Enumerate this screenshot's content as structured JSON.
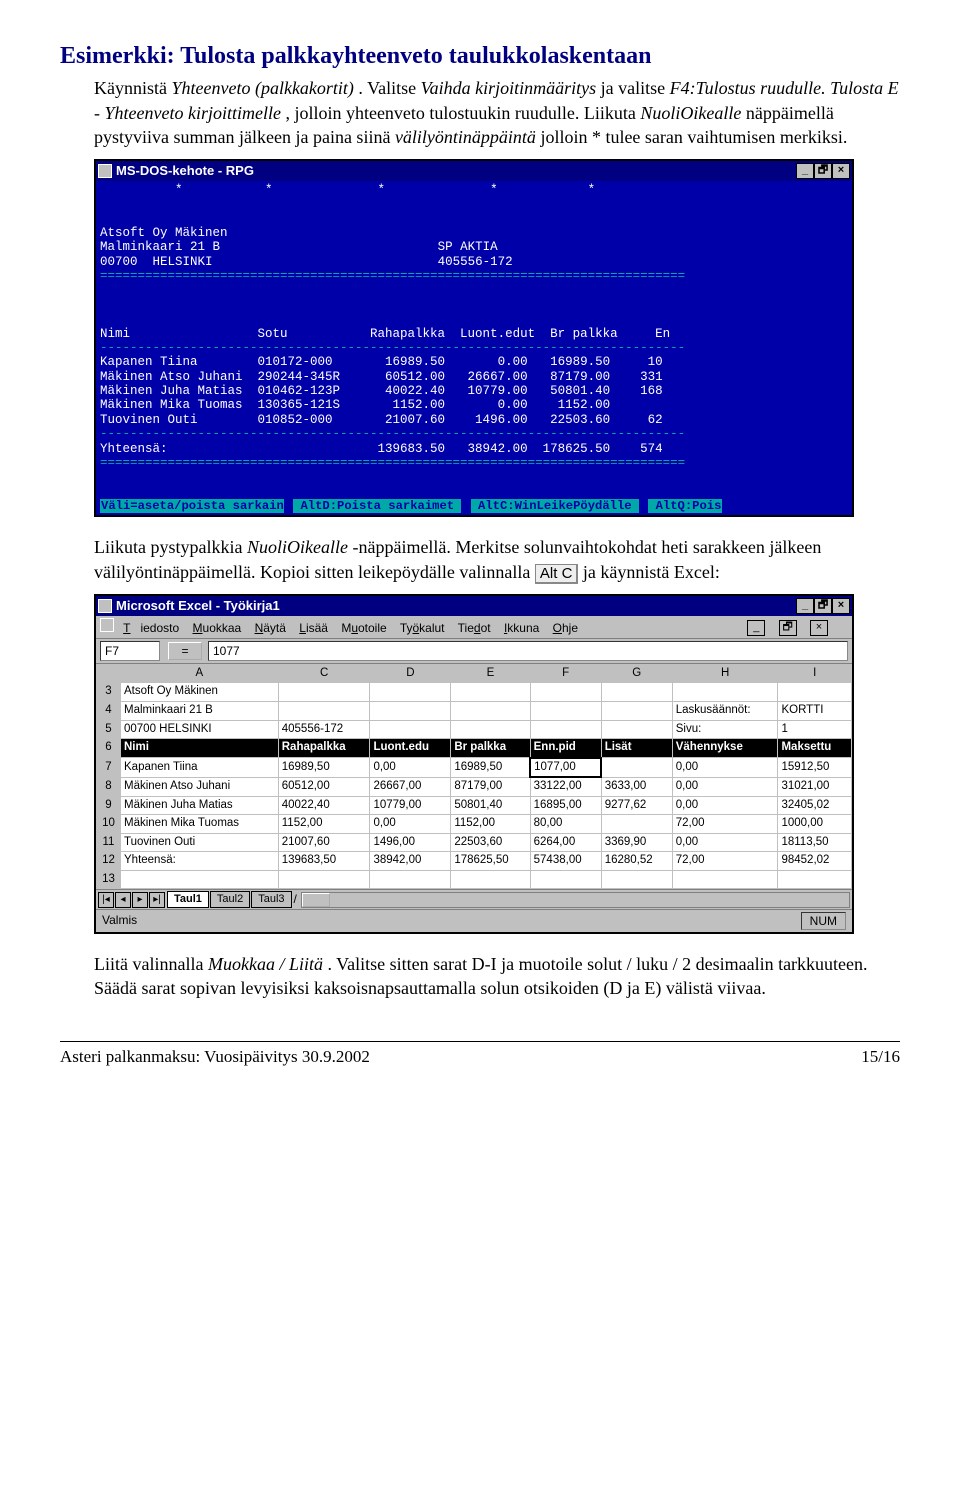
{
  "heading": "Esimerkki: Tulosta palkkayhteenveto taulukkolaskentaan",
  "para1_run1": "Käynnistä ",
  "para1_it1": "Yhteenveto (palkkakortit)",
  "para1_run2": ". Valitse ",
  "para1_it2": "Vaihda kirjoitinmääritys",
  "para1_run3": " ja valitse ",
  "para1_it3": "F4:Tulostus ruudulle. Tulosta E - Yhteenveto kirjoittimelle",
  "para1_run4": ", jolloin yhteenveto tulostuukin ruudulle. Liikuta ",
  "para1_it4": "NuoliOikealle",
  "para1_run5": " näppäimellä pystyviiva summan jälkeen ja paina siinä ",
  "para1_it5": "välilyöntinäppäintä",
  "para1_run6": " jolloin * tulee saran vaihtumisen merkiksi.",
  "dos": {
    "title": "MS-DOS-kehote - RPG",
    "company": "Atsoft Oy Mäkinen",
    "addr1": "Malminkaari 21 B",
    "addr2": "00700  HELSINKI",
    "acct1": "SP AKTIA",
    "acct2": "405556-172",
    "starline": "          *           *              *              *            *",
    "divider_long": "==============================================================================",
    "divider_short": "------------------------------------------------------------------------------",
    "hdr": "Nimi                 Sotu           Rahapalkka  Luont.edut  Br palkka     En",
    "rows": [
      "Kapanen Tiina        010172-000       16989.50       0.00   16989.50     10",
      "Mäkinen Atso Juhani  290244-345R      60512.00   26667.00   87179.00    331",
      "Mäkinen Juha Matias  010462-123P      40022.40   10779.00   50801.40    168",
      "Mäkinen Mika Tuomas  130365-121S       1152.00       0.00    1152.00",
      "Tuovinen Outi        010852-000       21007.60    1496.00   22503.60     62"
    ],
    "total": "Yhteensä:                            139683.50   38942.00  178625.50    574",
    "footer_parts": [
      "Väli=aseta/poista sarkain",
      " AltD:Poista sarkaimet ",
      " AltC:WinLeikePöydälle ",
      " AltQ:Pois"
    ]
  },
  "para2_run1": "Liikuta pystypalkkia ",
  "para2_it1": "NuoliOikealle",
  "para2_run2": " -näppäimellä. Merkitse solunvaihtokohdat heti sarakkeen jälkeen välilyöntinäppäimellä. Kopioi sitten leikepöydälle valinnalla ",
  "para2_key": "Alt C",
  "para2_run3": " ja käynnistä Excel:",
  "excel": {
    "title": "Microsoft Excel - Työkirja1",
    "menus": [
      "Tiedosto",
      "Muokkaa",
      "Näytä",
      "Lisää",
      "Muotoile",
      "Työkalut",
      "Tiedot",
      "Ikkuna",
      "Ohje"
    ],
    "active_cell": "F7",
    "formula_value": "1077",
    "cols": [
      "",
      "A",
      "C",
      "D",
      "E",
      "F",
      "G",
      "H",
      "I"
    ],
    "rows": [
      {
        "n": "3",
        "cells": [
          "Atsoft Oy Mäkinen",
          "",
          "",
          "",
          "",
          "",
          "",
          ""
        ]
      },
      {
        "n": "4",
        "cells": [
          "Malminkaari 21 B",
          "",
          "",
          "",
          "",
          "",
          "Laskusäännöt:",
          "KORTTI"
        ]
      },
      {
        "n": "5",
        "cells": [
          "00700 HELSINKI",
          "405556-172",
          "",
          "",
          "",
          "",
          "Sivu:",
          "1"
        ]
      },
      {
        "n": "6",
        "black": true,
        "cells": [
          "Nimi",
          "Rahapalkka",
          "Luont.edu",
          "Br palkka",
          "Enn.pid",
          "Lisät",
          "Vähennykse",
          "Maksettu"
        ]
      },
      {
        "n": "7",
        "cells": [
          "Kapanen Tiina",
          "16989,50",
          "0,00",
          "16989,50",
          "1077,00",
          "",
          "0,00",
          "15912,50"
        ],
        "sel": 4
      },
      {
        "n": "8",
        "cells": [
          "Mäkinen Atso Juhani",
          "60512,00",
          "26667,00",
          "87179,00",
          "33122,00",
          "3633,00",
          "0,00",
          "31021,00"
        ]
      },
      {
        "n": "9",
        "cells": [
          "Mäkinen Juha Matias",
          "40022,40",
          "10779,00",
          "50801,40",
          "16895,00",
          "9277,62",
          "0,00",
          "32405,02"
        ]
      },
      {
        "n": "10",
        "cells": [
          "Mäkinen Mika Tuomas",
          "1152,00",
          "0,00",
          "1152,00",
          "80,00",
          "",
          "72,00",
          "1000,00"
        ]
      },
      {
        "n": "11",
        "cells": [
          "Tuovinen Outi",
          "21007,60",
          "1496,00",
          "22503,60",
          "6264,00",
          "3369,90",
          "0,00",
          "18113,50"
        ]
      },
      {
        "n": "12",
        "cells": [
          "Yhteensä:",
          "139683,50",
          "38942,00",
          "178625,50",
          "57438,00",
          "16280,52",
          "72,00",
          "98452,02"
        ]
      },
      {
        "n": "13",
        "cells": [
          "",
          "",
          "",
          "",
          "",
          "",
          "",
          ""
        ]
      }
    ],
    "tabs": [
      "Taul1",
      "Taul2",
      "Taul3"
    ],
    "status_left": "Valmis",
    "status_right": "NUM"
  },
  "para3_run1": "Liitä valinnalla ",
  "para3_it1": "Muokkaa / Liitä",
  "para3_run2": ". Valitse sitten sarat D-I ja muotoile solut / luku / 2 desimaalin tarkkuuteen. Säädä sarat sopivan levyisiksi kaksoisnapsauttamalla solun otsikoiden (D ja E) välistä viivaa.",
  "footer_left": "Asteri palkanmaksu: Vuosipäivitys 30.9.2002",
  "footer_right": "15/16"
}
